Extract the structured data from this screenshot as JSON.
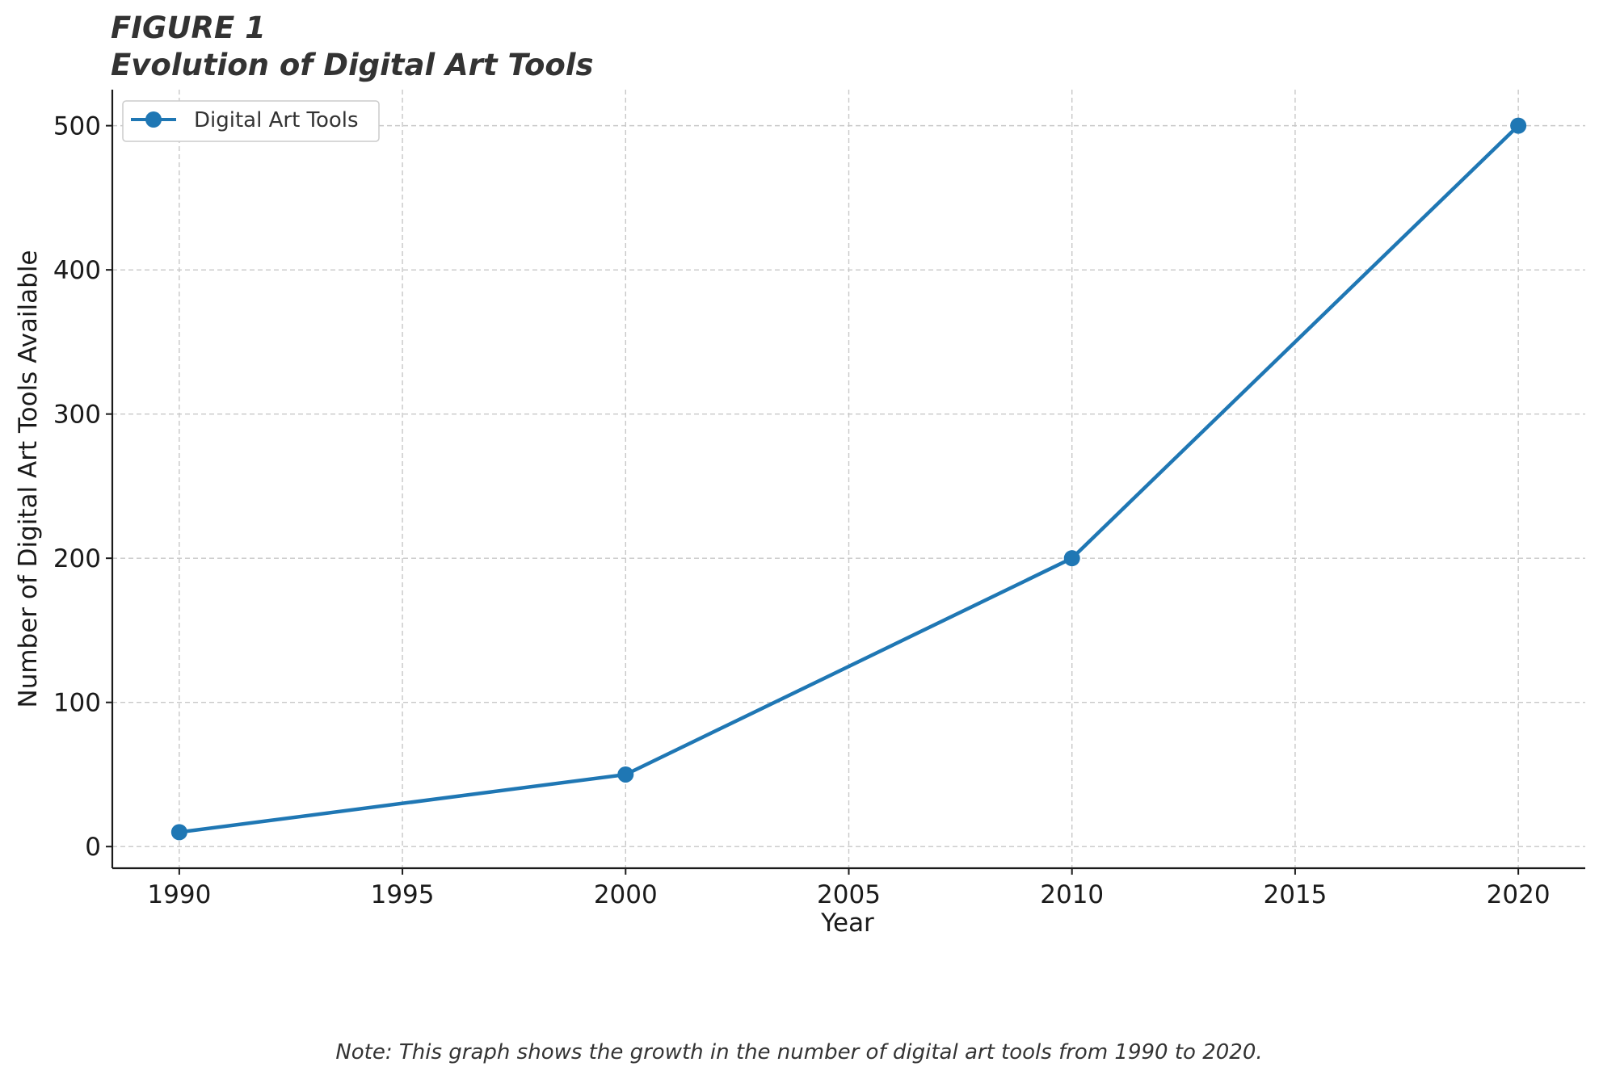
{
  "figure": {
    "label": "FIGURE 1",
    "title": "Evolution of Digital Art Tools",
    "note": "Note: This graph shows the growth in the number of digital art tools from 1990 to 2020."
  },
  "chart_data": {
    "type": "line",
    "title": "Evolution of Digital Art Tools",
    "xlabel": "Year",
    "ylabel": "Number of Digital Art Tools Available",
    "xlim": [
      1988.5,
      2021.5
    ],
    "ylim": [
      -15,
      525
    ],
    "x_ticks": [
      1990,
      1995,
      2000,
      2005,
      2010,
      2015,
      2020
    ],
    "y_ticks": [
      0,
      100,
      200,
      300,
      400,
      500
    ],
    "grid": true,
    "legend_position": "top-left",
    "series": [
      {
        "name": "Digital Art Tools",
        "color": "#1f77b4",
        "x": [
          1990,
          2000,
          2010,
          2020
        ],
        "y": [
          10,
          50,
          200,
          500
        ]
      }
    ]
  }
}
